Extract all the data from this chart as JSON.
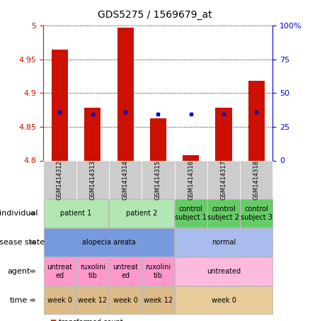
{
  "title": "GDS5275 / 1569679_at",
  "samples": [
    "GSM1414312",
    "GSM1414313",
    "GSM1414314",
    "GSM1414315",
    "GSM1414316",
    "GSM1414317",
    "GSM1414318"
  ],
  "red_values": [
    4.965,
    4.878,
    4.997,
    4.863,
    4.808,
    4.878,
    4.918
  ],
  "blue_values": [
    4.872,
    4.869,
    4.872,
    4.869,
    4.869,
    4.869,
    4.872
  ],
  "y_min": 4.8,
  "y_max": 5.0,
  "y_ticks": [
    4.8,
    4.85,
    4.9,
    4.95,
    5.0
  ],
  "y_tick_labels": [
    "4.8",
    "4.85",
    "4.9",
    "4.95",
    "5"
  ],
  "right_ticks": [
    0,
    25,
    50,
    75,
    100
  ],
  "right_tick_labels": [
    "0",
    "25",
    "50",
    "75",
    "100%"
  ],
  "annotation_rows": [
    {
      "label": "individual",
      "groups": [
        {
          "text": "patient 1",
          "span": [
            0,
            2
          ],
          "facecolor": "#b2e6b2",
          "edgecolor": "#aaaaaa"
        },
        {
          "text": "patient 2",
          "span": [
            2,
            4
          ],
          "facecolor": "#b2e6b2",
          "edgecolor": "#aaaaaa"
        },
        {
          "text": "control\nsubject 1",
          "span": [
            4,
            5
          ],
          "facecolor": "#66cc66",
          "edgecolor": "#aaaaaa"
        },
        {
          "text": "control\nsubject 2",
          "span": [
            5,
            6
          ],
          "facecolor": "#66cc66",
          "edgecolor": "#aaaaaa"
        },
        {
          "text": "control\nsubject 3",
          "span": [
            6,
            7
          ],
          "facecolor": "#66cc66",
          "edgecolor": "#aaaaaa"
        }
      ]
    },
    {
      "label": "disease state",
      "groups": [
        {
          "text": "alopecia areata",
          "span": [
            0,
            4
          ],
          "facecolor": "#7799dd",
          "edgecolor": "#aaaaaa"
        },
        {
          "text": "normal",
          "span": [
            4,
            7
          ],
          "facecolor": "#aabbee",
          "edgecolor": "#aaaaaa"
        }
      ]
    },
    {
      "label": "agent",
      "groups": [
        {
          "text": "untreat\ned",
          "span": [
            0,
            1
          ],
          "facecolor": "#ff99cc",
          "edgecolor": "#aaaaaa"
        },
        {
          "text": "ruxolini\ntib",
          "span": [
            1,
            2
          ],
          "facecolor": "#ff99cc",
          "edgecolor": "#aaaaaa"
        },
        {
          "text": "untreat\ned",
          "span": [
            2,
            3
          ],
          "facecolor": "#ff99cc",
          "edgecolor": "#aaaaaa"
        },
        {
          "text": "ruxolini\ntib",
          "span": [
            3,
            4
          ],
          "facecolor": "#ff99cc",
          "edgecolor": "#aaaaaa"
        },
        {
          "text": "untreated",
          "span": [
            4,
            7
          ],
          "facecolor": "#ffbbdd",
          "edgecolor": "#aaaaaa"
        }
      ]
    },
    {
      "label": "time",
      "groups": [
        {
          "text": "week 0",
          "span": [
            0,
            1
          ],
          "facecolor": "#ddbb88",
          "edgecolor": "#aaaaaa"
        },
        {
          "text": "week 12",
          "span": [
            1,
            2
          ],
          "facecolor": "#ddbb88",
          "edgecolor": "#aaaaaa"
        },
        {
          "text": "week 0",
          "span": [
            2,
            3
          ],
          "facecolor": "#ddbb88",
          "edgecolor": "#aaaaaa"
        },
        {
          "text": "week 12",
          "span": [
            3,
            4
          ],
          "facecolor": "#ddbb88",
          "edgecolor": "#aaaaaa"
        },
        {
          "text": "week 0",
          "span": [
            4,
            7
          ],
          "facecolor": "#e8cc99",
          "edgecolor": "#aaaaaa"
        }
      ]
    }
  ],
  "bar_color": "#cc1100",
  "dot_color": "#0000cc",
  "bar_width": 0.5,
  "background_color": "#ffffff",
  "axis_color_left": "#cc1100",
  "axis_color_right": "#0000cc",
  "sample_box_color": "#cccccc",
  "label_fontsize": 8,
  "tick_fontsize": 8,
  "annot_fontsize": 7,
  "sample_fontsize": 6
}
